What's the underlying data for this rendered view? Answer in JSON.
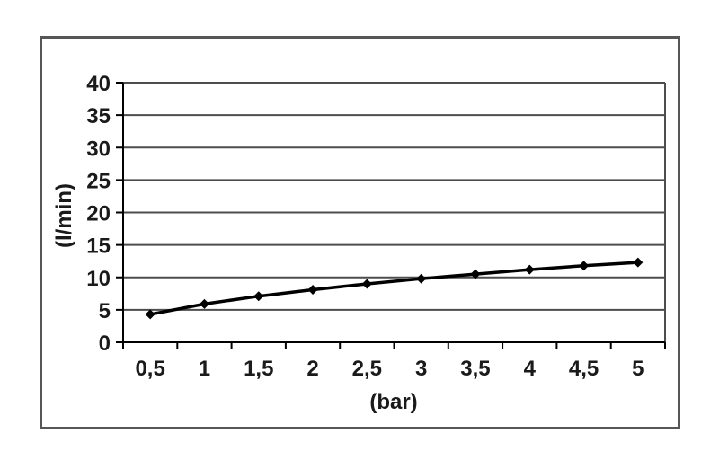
{
  "chart_data": {
    "type": "line",
    "x": [
      0.5,
      1,
      1.5,
      2,
      2.5,
      3,
      3.5,
      4,
      4.5,
      5
    ],
    "x_tick_labels": [
      "0,5",
      "1",
      "1,5",
      "2",
      "2,5",
      "3",
      "3,5",
      "4",
      "4,5",
      "5"
    ],
    "values": [
      4.3,
      5.9,
      7.1,
      8.1,
      9.0,
      9.8,
      10.5,
      11.2,
      11.8,
      12.3
    ],
    "title": "",
    "xlabel": "(bar)",
    "ylabel": "(l/min)",
    "ylim": [
      0,
      40
    ],
    "y_ticks": [
      0,
      5,
      10,
      15,
      20,
      25,
      30,
      35,
      40
    ],
    "grid": true,
    "legend": "none",
    "marker": "diamond"
  },
  "colors": {
    "series_line": "#000000",
    "marker_fill": "#000000",
    "gridline": "#4d4d4d",
    "axis_line": "#000000",
    "tick_text": "#1a1a1a",
    "frame_border": "#565656",
    "background": "#ffffff"
  }
}
